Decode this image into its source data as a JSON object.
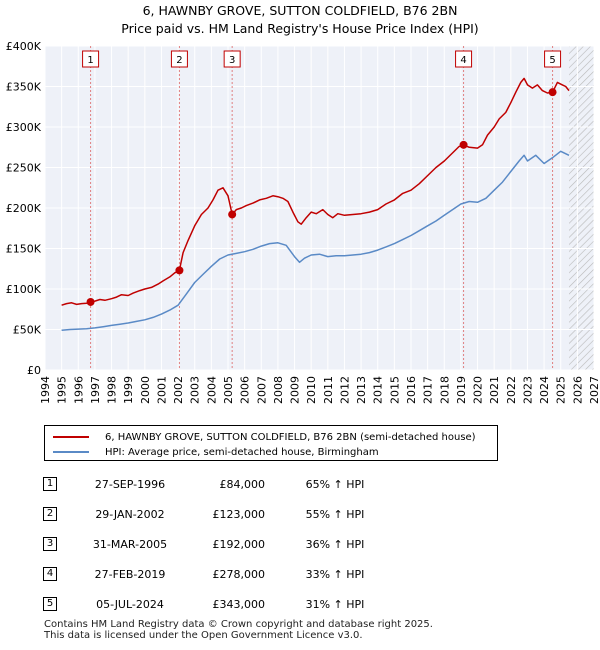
{
  "chart_data": {
    "type": "line",
    "title": "6, HAWNBY GROVE, SUTTON COLDFIELD, B76 2BN",
    "subtitle": "Price paid vs. HM Land Registry's House Price Index (HPI)",
    "xlabel": "",
    "ylabel": "",
    "xlim": [
      1994,
      2027
    ],
    "ylim": [
      0,
      400000
    ],
    "x_ticks": [
      1994,
      1995,
      1996,
      1997,
      1998,
      1999,
      2000,
      2001,
      2002,
      2003,
      2004,
      2005,
      2006,
      2007,
      2008,
      2009,
      2010,
      2011,
      2012,
      2013,
      2014,
      2015,
      2016,
      2017,
      2018,
      2019,
      2020,
      2021,
      2022,
      2023,
      2024,
      2025,
      2026,
      2027
    ],
    "y_ticks": [
      0,
      50000,
      100000,
      150000,
      200000,
      250000,
      300000,
      350000,
      400000
    ],
    "y_tick_labels": [
      "£0",
      "£50K",
      "£100K",
      "£150K",
      "£200K",
      "£250K",
      "£300K",
      "£350K",
      "£400K"
    ],
    "grid": true,
    "series": [
      {
        "name": "6, HAWNBY GROVE, SUTTON COLDFIELD, B76 2BN (semi-detached house)",
        "color": "#c00000",
        "points": [
          [
            1995.0,
            80000
          ],
          [
            1995.3,
            82000
          ],
          [
            1995.6,
            83000
          ],
          [
            1995.9,
            81000
          ],
          [
            1996.2,
            82000
          ],
          [
            1996.5,
            82500
          ],
          [
            1996.74,
            84000
          ],
          [
            1997.0,
            85000
          ],
          [
            1997.3,
            87000
          ],
          [
            1997.6,
            86000
          ],
          [
            1998.0,
            88000
          ],
          [
            1998.3,
            90000
          ],
          [
            1998.6,
            93000
          ],
          [
            1999.0,
            92000
          ],
          [
            1999.3,
            95000
          ],
          [
            1999.7,
            98000
          ],
          [
            2000.0,
            100000
          ],
          [
            2000.4,
            102000
          ],
          [
            2000.8,
            106000
          ],
          [
            2001.1,
            110000
          ],
          [
            2001.5,
            115000
          ],
          [
            2001.8,
            120000
          ],
          [
            2002.08,
            123000
          ],
          [
            2002.3,
            145000
          ],
          [
            2002.6,
            160000
          ],
          [
            2003.0,
            178000
          ],
          [
            2003.4,
            192000
          ],
          [
            2003.8,
            200000
          ],
          [
            2004.1,
            210000
          ],
          [
            2004.4,
            222000
          ],
          [
            2004.7,
            225000
          ],
          [
            2005.0,
            215000
          ],
          [
            2005.25,
            192000
          ],
          [
            2005.5,
            198000
          ],
          [
            2005.8,
            200000
          ],
          [
            2006.1,
            203000
          ],
          [
            2006.5,
            206000
          ],
          [
            2006.9,
            210000
          ],
          [
            2007.3,
            212000
          ],
          [
            2007.7,
            215000
          ],
          [
            2008.0,
            214000
          ],
          [
            2008.3,
            212000
          ],
          [
            2008.6,
            208000
          ],
          [
            2008.9,
            195000
          ],
          [
            2009.2,
            183000
          ],
          [
            2009.4,
            180000
          ],
          [
            2009.7,
            188000
          ],
          [
            2010.0,
            195000
          ],
          [
            2010.3,
            193000
          ],
          [
            2010.7,
            198000
          ],
          [
            2011.0,
            192000
          ],
          [
            2011.3,
            188000
          ],
          [
            2011.6,
            193000
          ],
          [
            2012.0,
            191000
          ],
          [
            2012.5,
            192000
          ],
          [
            2013.0,
            193000
          ],
          [
            2013.5,
            195000
          ],
          [
            2014.0,
            198000
          ],
          [
            2014.5,
            205000
          ],
          [
            2015.0,
            210000
          ],
          [
            2015.5,
            218000
          ],
          [
            2016.0,
            222000
          ],
          [
            2016.5,
            230000
          ],
          [
            2017.0,
            240000
          ],
          [
            2017.5,
            250000
          ],
          [
            2018.0,
            258000
          ],
          [
            2018.5,
            268000
          ],
          [
            2018.9,
            276000
          ],
          [
            2019.16,
            278000
          ],
          [
            2019.5,
            275000
          ],
          [
            2020.0,
            274000
          ],
          [
            2020.3,
            278000
          ],
          [
            2020.6,
            290000
          ],
          [
            2021.0,
            300000
          ],
          [
            2021.3,
            310000
          ],
          [
            2021.7,
            318000
          ],
          [
            2022.0,
            330000
          ],
          [
            2022.3,
            343000
          ],
          [
            2022.6,
            355000
          ],
          [
            2022.8,
            360000
          ],
          [
            2023.0,
            352000
          ],
          [
            2023.3,
            348000
          ],
          [
            2023.6,
            352000
          ],
          [
            2023.9,
            345000
          ],
          [
            2024.2,
            342000
          ],
          [
            2024.51,
            343000
          ],
          [
            2024.8,
            355000
          ],
          [
            2025.1,
            352000
          ],
          [
            2025.3,
            350000
          ],
          [
            2025.5,
            345000
          ]
        ]
      },
      {
        "name": "HPI: Average price, semi-detached house, Birmingham",
        "color": "#5a8ac6",
        "points": [
          [
            1995.0,
            49000
          ],
          [
            1995.5,
            50000
          ],
          [
            1996.0,
            50500
          ],
          [
            1996.5,
            51000
          ],
          [
            1997.0,
            52000
          ],
          [
            1997.5,
            53500
          ],
          [
            1998.0,
            55000
          ],
          [
            1998.5,
            56500
          ],
          [
            1999.0,
            58000
          ],
          [
            1999.5,
            60000
          ],
          [
            2000.0,
            62000
          ],
          [
            2000.5,
            65000
          ],
          [
            2001.0,
            69000
          ],
          [
            2001.5,
            74000
          ],
          [
            2002.0,
            80000
          ],
          [
            2002.5,
            94000
          ],
          [
            2003.0,
            108000
          ],
          [
            2003.5,
            118000
          ],
          [
            2004.0,
            128000
          ],
          [
            2004.5,
            137000
          ],
          [
            2005.0,
            142000
          ],
          [
            2005.5,
            144000
          ],
          [
            2006.0,
            146000
          ],
          [
            2006.5,
            149000
          ],
          [
            2007.0,
            153000
          ],
          [
            2007.5,
            156000
          ],
          [
            2008.0,
            157000
          ],
          [
            2008.5,
            154000
          ],
          [
            2009.0,
            140000
          ],
          [
            2009.3,
            133000
          ],
          [
            2009.6,
            138000
          ],
          [
            2010.0,
            142000
          ],
          [
            2010.5,
            143000
          ],
          [
            2011.0,
            140000
          ],
          [
            2011.5,
            141000
          ],
          [
            2012.0,
            141000
          ],
          [
            2012.5,
            142000
          ],
          [
            2013.0,
            143000
          ],
          [
            2013.5,
            145000
          ],
          [
            2014.0,
            148000
          ],
          [
            2014.5,
            152000
          ],
          [
            2015.0,
            156000
          ],
          [
            2015.5,
            161000
          ],
          [
            2016.0,
            166000
          ],
          [
            2016.5,
            172000
          ],
          [
            2017.0,
            178000
          ],
          [
            2017.5,
            184000
          ],
          [
            2018.0,
            191000
          ],
          [
            2018.5,
            198000
          ],
          [
            2019.0,
            205000
          ],
          [
            2019.5,
            208000
          ],
          [
            2020.0,
            207000
          ],
          [
            2020.5,
            212000
          ],
          [
            2021.0,
            222000
          ],
          [
            2021.5,
            232000
          ],
          [
            2022.0,
            245000
          ],
          [
            2022.5,
            258000
          ],
          [
            2022.8,
            265000
          ],
          [
            2023.0,
            258000
          ],
          [
            2023.5,
            265000
          ],
          [
            2024.0,
            255000
          ],
          [
            2024.5,
            262000
          ],
          [
            2025.0,
            270000
          ],
          [
            2025.5,
            265000
          ]
        ]
      }
    ],
    "sale_markers": [
      {
        "label": "1",
        "x": 1996.74,
        "y": 84000
      },
      {
        "label": "2",
        "x": 2002.08,
        "y": 123000
      },
      {
        "label": "3",
        "x": 2005.25,
        "y": 192000
      },
      {
        "label": "4",
        "x": 2019.16,
        "y": 278000
      },
      {
        "label": "5",
        "x": 2024.51,
        "y": 343000
      }
    ],
    "hatch_from": 2025.5
  },
  "legend": {
    "property_label": "6, HAWNBY GROVE, SUTTON COLDFIELD, B76 2BN (semi-detached house)",
    "hpi_label": "HPI: Average price, semi-detached house, Birmingham"
  },
  "sales": [
    {
      "num": "1",
      "date": "27-SEP-1996",
      "price": "£84,000",
      "hpi": "65% ↑ HPI"
    },
    {
      "num": "2",
      "date": "29-JAN-2002",
      "price": "£123,000",
      "hpi": "55% ↑ HPI"
    },
    {
      "num": "3",
      "date": "31-MAR-2005",
      "price": "£192,000",
      "hpi": "36% ↑ HPI"
    },
    {
      "num": "4",
      "date": "27-FEB-2019",
      "price": "£278,000",
      "hpi": "33% ↑ HPI"
    },
    {
      "num": "5",
      "date": "05-JUL-2024",
      "price": "£343,000",
      "hpi": "31% ↑ HPI"
    }
  ],
  "footer": {
    "line1": "Contains HM Land Registry data © Crown copyright and database right 2025.",
    "line2": "This data is licensed under the Open Government Licence v3.0."
  }
}
